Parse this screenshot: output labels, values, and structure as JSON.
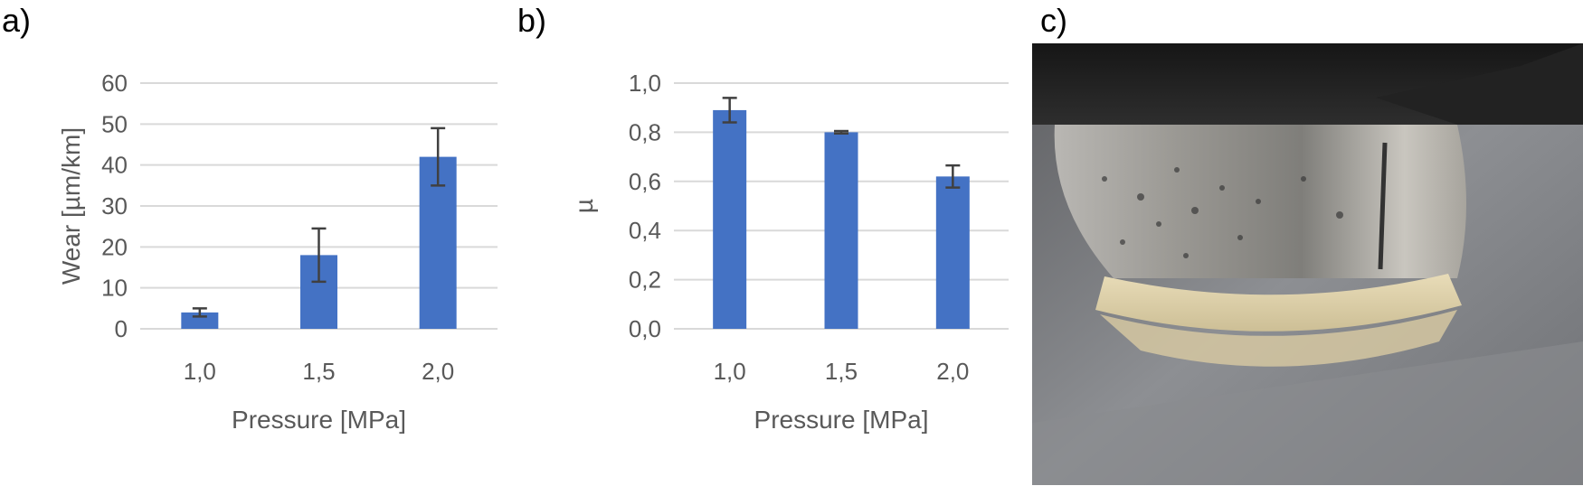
{
  "panels": {
    "a_label": "a)",
    "b_label": "b)",
    "c_label": "c)"
  },
  "colors": {
    "bar": "#4472c4",
    "error_bar": "#404040",
    "grid": "#d9d9d9"
  },
  "chart_data": [
    {
      "type": "bar",
      "categories": [
        "1,0",
        "1,5",
        "2,0"
      ],
      "values": [
        4,
        18,
        42
      ],
      "errors": [
        1,
        6.5,
        7
      ],
      "ylabel": "Wear [µm/km]",
      "xlabel": "Pressure [MPa]",
      "ylim": [
        0,
        60
      ],
      "yticks": [
        "0",
        "10",
        "20",
        "30",
        "40",
        "50",
        "60"
      ],
      "grid": true
    },
    {
      "type": "bar",
      "categories": [
        "1,0",
        "1,5",
        "2,0"
      ],
      "values": [
        0.89,
        0.8,
        0.62
      ],
      "errors": [
        0.05,
        0.005,
        0.045
      ],
      "ylabel": "µ",
      "xlabel": "Pressure [MPa]",
      "ylim": [
        0,
        1
      ],
      "yticks": [
        "0,0",
        "0,2",
        "0,4",
        "0,6",
        "0,8",
        "1,0"
      ],
      "grid": true
    }
  ]
}
